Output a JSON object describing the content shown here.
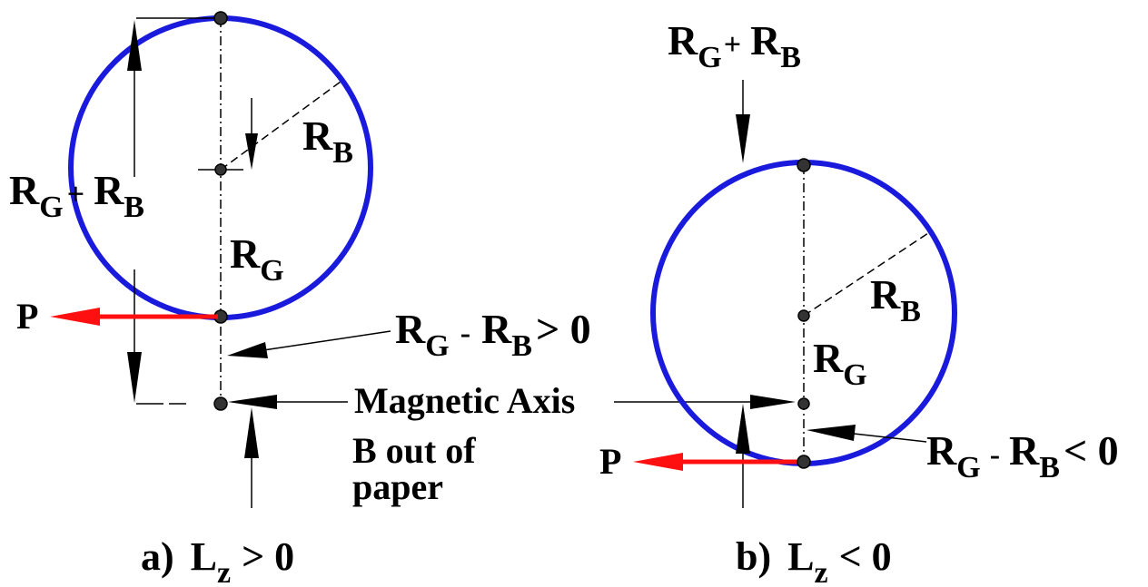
{
  "colors": {
    "orbit": "#1a1adc",
    "momentum": "#ff1010",
    "ink": "#000000"
  },
  "panel_a": {
    "label_rgrb_sum": {
      "main1": "R",
      "sub1": "G",
      "plus": "+",
      "main2": "R",
      "sub2": "B"
    },
    "label_rb": {
      "main": "R",
      "sub": "B"
    },
    "label_rg": {
      "main": "R",
      "sub": "G"
    },
    "label_p": "P",
    "label_diff": {
      "main1": "R",
      "sub1": "G",
      "op": "-",
      "main2": "R",
      "sub2": "B",
      "rel": "> 0"
    },
    "caption": {
      "prefix": "a)",
      "main": "L",
      "sub": "z",
      "rel": "> 0"
    }
  },
  "shared": {
    "magnetic_axis": "Magnetic Axis",
    "b_field_line1": "B out of",
    "b_field_line2": "paper"
  },
  "panel_b": {
    "label_rgrb_sum": {
      "main1": "R",
      "sub1": "G",
      "plus": "+",
      "main2": "R",
      "sub2": "B"
    },
    "label_rb": {
      "main": "R",
      "sub": "B"
    },
    "label_rg": {
      "main": "R",
      "sub": "G"
    },
    "label_p": "P",
    "label_diff": {
      "main1": "R",
      "sub1": "G",
      "op": "-",
      "main2": "R",
      "sub2": "B",
      "rel": "< 0"
    },
    "caption": {
      "prefix": "b)",
      "main": "L",
      "sub": "z",
      "rel": "< 0"
    }
  }
}
